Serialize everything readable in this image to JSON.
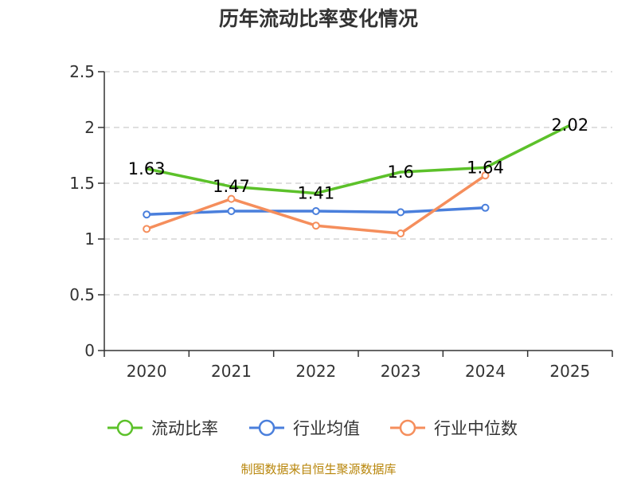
{
  "chart_data": {
    "type": "line",
    "title": "历年流动比率变化情况",
    "categories": [
      "2020",
      "2021",
      "2022",
      "2023",
      "2024",
      "2025"
    ],
    "ylim": [
      0,
      2.5
    ],
    "yticks": [
      "0",
      "0.5",
      "1",
      "1.5",
      "2",
      "2.5"
    ],
    "ytick_values": [
      0,
      0.5,
      1,
      1.5,
      2,
      2.5
    ],
    "grid": true,
    "legend_position": "bottom",
    "series": [
      {
        "name": "流动比率",
        "color": "#5cc12a",
        "values": [
          1.63,
          1.47,
          1.41,
          1.6,
          1.64,
          2.02
        ],
        "labels": [
          "1.63",
          "1.47",
          "1.41",
          "1.6",
          "1.64",
          "2.02"
        ],
        "show_markers": false
      },
      {
        "name": "行业均值",
        "color": "#4a7fdc",
        "values": [
          1.22,
          1.25,
          1.25,
          1.24,
          1.28,
          null
        ],
        "show_markers": true
      },
      {
        "name": "行业中位数",
        "color": "#f58e5c",
        "values": [
          1.09,
          1.36,
          1.12,
          1.05,
          1.57,
          null
        ],
        "show_markers": true
      }
    ]
  },
  "source": "制图数据来自恒生聚源数据库"
}
